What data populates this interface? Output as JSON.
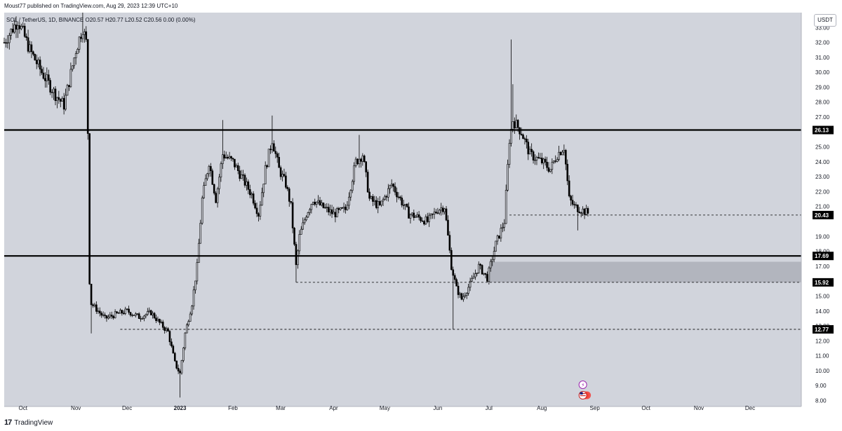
{
  "header": {
    "published_text": "Moust77 published on TradingView.com, Aug 29, 2023 12:39 UTC+10"
  },
  "legend": {
    "text": "SOL / TetherUS, 1D, BINANCE  O20.57  H20.77  L20.52  C20.56  0.00 (0.00%)"
  },
  "currency_button": {
    "label": "USDT"
  },
  "footer": {
    "brand": "TradingView",
    "logo_glyph": "17"
  },
  "colors": {
    "background": "#d1d4dc",
    "candle": "#000000",
    "zone": "#b2b5be"
  },
  "chart_data": {
    "type": "candlestick",
    "symbol": "SOL",
    "quote": "TetherUS",
    "interval": "1D",
    "exchange": "BINANCE",
    "ohlc": {
      "open": 20.57,
      "high": 20.77,
      "low": 20.52,
      "close": 20.56,
      "change": "0.00",
      "change_pct": "(0.00%)"
    },
    "x_range": [
      "2022-09-20",
      "2023-12-31"
    ],
    "x_ticks": [
      {
        "date": "2022-10-01",
        "label": "Oct"
      },
      {
        "date": "2022-11-01",
        "label": "Nov"
      },
      {
        "date": "2022-12-01",
        "label": "Dec"
      },
      {
        "date": "2023-01-01",
        "label": "2023"
      },
      {
        "date": "2023-02-01",
        "label": "Feb"
      },
      {
        "date": "2023-03-01",
        "label": "Mar"
      },
      {
        "date": "2023-04-01",
        "label": "Apr"
      },
      {
        "date": "2023-05-01",
        "label": "May"
      },
      {
        "date": "2023-06-01",
        "label": "Jun"
      },
      {
        "date": "2023-07-01",
        "label": "Jul"
      },
      {
        "date": "2023-08-01",
        "label": "Aug"
      },
      {
        "date": "2023-09-01",
        "label": "Sep"
      },
      {
        "date": "2023-10-01",
        "label": "Oct"
      },
      {
        "date": "2023-11-01",
        "label": "Nov"
      },
      {
        "date": "2023-12-01",
        "label": "Dec"
      }
    ],
    "y_range": [
      7.6,
      34.0
    ],
    "y_ticks": [
      "33.00",
      "32.00",
      "31.00",
      "30.00",
      "29.00",
      "28.00",
      "27.00",
      "25.00",
      "24.00",
      "23.00",
      "22.00",
      "21.00",
      "19.00",
      "18.00",
      "17.00",
      "16.00",
      "15.00",
      "14.00",
      "13.00",
      "12.00",
      "11.00",
      "10.00",
      "9.00",
      "8.00"
    ],
    "horizontal_lines": [
      {
        "value": 26.13,
        "label": "26.13",
        "style": "solid"
      },
      {
        "value": 17.69,
        "label": "17.69",
        "style": "solid"
      }
    ],
    "dashed_levels": [
      {
        "value": 20.43,
        "label": "20.43",
        "from": "2023-07-13"
      },
      {
        "value": 15.92,
        "label": "15.92",
        "from": "2023-03-10"
      },
      {
        "value": 12.77,
        "label": "12.77",
        "from": "2022-11-27"
      }
    ],
    "zones": [
      {
        "from": "2023-07-01",
        "low": 15.92,
        "high": 17.3
      }
    ],
    "price_path": [
      [
        "2022-09-20",
        32.0
      ],
      [
        "2022-09-28",
        33.5
      ],
      [
        "2022-10-05",
        31.5
      ],
      [
        "2022-10-12",
        30.0
      ],
      [
        "2022-10-20",
        28.5
      ],
      [
        "2022-10-25",
        27.8
      ],
      [
        "2022-11-01",
        31.5
      ],
      [
        "2022-11-05",
        33.0
      ],
      [
        "2022-11-07",
        32.0
      ],
      [
        "2022-11-08",
        26.0
      ],
      [
        "2022-11-09",
        16.0
      ],
      [
        "2022-11-10",
        14.5
      ],
      [
        "2022-11-14",
        14.0
      ],
      [
        "2022-11-18",
        13.5
      ],
      [
        "2022-11-25",
        13.8
      ],
      [
        "2022-12-01",
        14.0
      ],
      [
        "2022-12-08",
        13.6
      ],
      [
        "2022-12-15",
        13.9
      ],
      [
        "2022-12-20",
        13.2
      ],
      [
        "2022-12-25",
        12.6
      ],
      [
        "2022-12-29",
        10.5
      ],
      [
        "2023-01-01",
        9.8
      ],
      [
        "2023-01-04",
        12.5
      ],
      [
        "2023-01-08",
        14.5
      ],
      [
        "2023-01-11",
        17.0
      ],
      [
        "2023-01-14",
        21.5
      ],
      [
        "2023-01-18",
        24.0
      ],
      [
        "2023-01-22",
        21.5
      ],
      [
        "2023-01-26",
        24.5
      ],
      [
        "2023-02-01",
        24.0
      ],
      [
        "2023-02-06",
        23.0
      ],
      [
        "2023-02-12",
        21.8
      ],
      [
        "2023-02-16",
        20.5
      ],
      [
        "2023-02-20",
        23.5
      ],
      [
        "2023-02-24",
        25.5
      ],
      [
        "2023-02-28",
        23.5
      ],
      [
        "2023-03-04",
        22.5
      ],
      [
        "2023-03-07",
        21.0
      ],
      [
        "2023-03-10",
        17.0
      ],
      [
        "2023-03-12",
        19.0
      ],
      [
        "2023-03-16",
        20.5
      ],
      [
        "2023-03-20",
        21.5
      ],
      [
        "2023-03-25",
        21.0
      ],
      [
        "2023-04-01",
        20.5
      ],
      [
        "2023-04-08",
        20.8
      ],
      [
        "2023-04-14",
        24.0
      ],
      [
        "2023-04-18",
        24.5
      ],
      [
        "2023-04-22",
        21.5
      ],
      [
        "2023-04-28",
        21.0
      ],
      [
        "2023-05-05",
        22.5
      ],
      [
        "2023-05-10",
        21.5
      ],
      [
        "2023-05-15",
        20.5
      ],
      [
        "2023-05-20",
        20.3
      ],
      [
        "2023-05-26",
        20.0
      ],
      [
        "2023-06-01",
        20.8
      ],
      [
        "2023-06-05",
        21.0
      ],
      [
        "2023-06-09",
        17.0
      ],
      [
        "2023-06-12",
        15.5
      ],
      [
        "2023-06-15",
        14.8
      ],
      [
        "2023-06-20",
        15.8
      ],
      [
        "2023-06-25",
        17.0
      ],
      [
        "2023-06-30",
        16.2
      ],
      [
        "2023-07-05",
        18.5
      ],
      [
        "2023-07-10",
        20.0
      ],
      [
        "2023-07-13",
        25.5
      ],
      [
        "2023-07-15",
        26.8
      ],
      [
        "2023-07-20",
        26.0
      ],
      [
        "2023-07-25",
        24.5
      ],
      [
        "2023-08-01",
        24.0
      ],
      [
        "2023-08-06",
        23.5
      ],
      [
        "2023-08-10",
        24.5
      ],
      [
        "2023-08-14",
        25.0
      ],
      [
        "2023-08-17",
        21.5
      ],
      [
        "2023-08-20",
        21.0
      ],
      [
        "2023-08-24",
        20.8
      ],
      [
        "2023-08-28",
        20.56
      ]
    ],
    "spikes": [
      {
        "date": "2022-11-05",
        "high": 34.0
      },
      {
        "date": "2022-11-10",
        "low": 12.5
      },
      {
        "date": "2023-01-01",
        "low": 8.2
      },
      {
        "date": "2023-01-26",
        "high": 26.8
      },
      {
        "date": "2023-02-24",
        "high": 27.1
      },
      {
        "date": "2023-03-10",
        "low": 15.92
      },
      {
        "date": "2023-04-16",
        "high": 25.8
      },
      {
        "date": "2023-06-10",
        "low": 12.77
      },
      {
        "date": "2023-07-14",
        "high": 32.2
      },
      {
        "date": "2023-07-15",
        "high": 29.2
      },
      {
        "date": "2023-08-22",
        "low": 19.4
      }
    ],
    "markers": [
      {
        "date": "2023-08-25",
        "icon": "lightning-icon"
      },
      {
        "date": "2023-08-25",
        "icon": "us-flag-icon"
      }
    ]
  }
}
